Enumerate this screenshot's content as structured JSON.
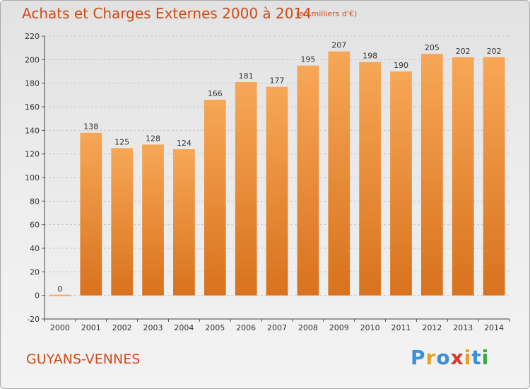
{
  "title": "Achats et Charges Externes 2000 à 2014",
  "subtitle": "(en milliers d'€)",
  "commune": "GUYANS-VENNES",
  "logo": {
    "text": "Proxiti",
    "letters": [
      "P",
      "r",
      "o",
      "x",
      "i",
      "t",
      "i"
    ],
    "colors": [
      "#3a8fd8",
      "#e8a020",
      "#3a8fd8",
      "#d83a2a",
      "#e8a020",
      "#3a8fd8",
      "#3aa83a"
    ]
  },
  "chart_data": {
    "type": "bar",
    "categories": [
      "2000",
      "2001",
      "2002",
      "2003",
      "2004",
      "2005",
      "2006",
      "2007",
      "2008",
      "2009",
      "2010",
      "2011",
      "2012",
      "2013",
      "2014"
    ],
    "values": [
      0,
      138,
      125,
      128,
      124,
      166,
      181,
      177,
      195,
      207,
      198,
      190,
      205,
      202,
      202
    ],
    "ylim": [
      -20,
      220
    ],
    "yticks": [
      -20,
      0,
      20,
      40,
      60,
      80,
      100,
      120,
      140,
      160,
      180,
      200,
      220
    ],
    "grid": true,
    "bar_color_top": "#f7a756",
    "bar_color_bottom": "#d8721e"
  }
}
